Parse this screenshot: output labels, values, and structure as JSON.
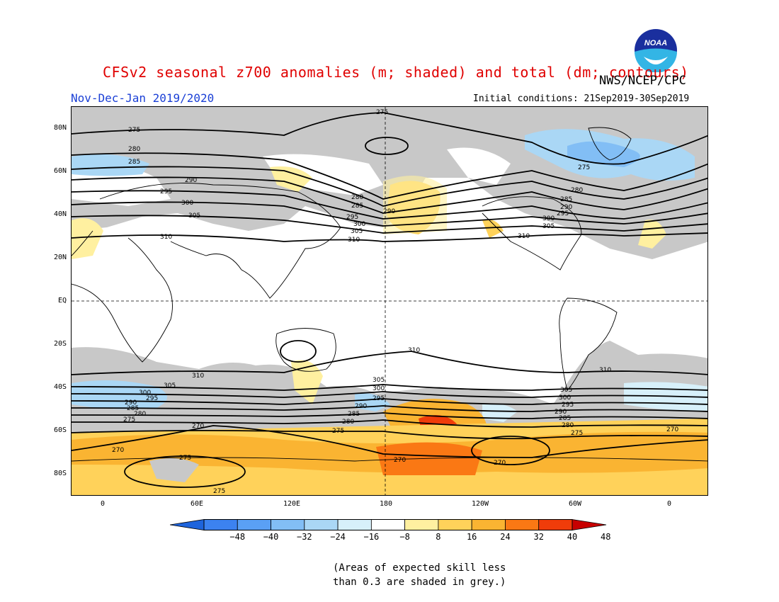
{
  "header": {
    "title": "CFSv2 seasonal z700 anomalies (m; shaded) and total (dm; contours)",
    "agency": "NWS/NCEP/CPC",
    "period": "Nov-Dec-Jan 2019/2020",
    "initial_conditions": "Initial conditions: 21Sep2019-30Sep2019",
    "logo_text": "NOAA"
  },
  "axes": {
    "lat_labels": [
      "80N",
      "60N",
      "40N",
      "20N",
      "EQ",
      "20S",
      "40S",
      "60S",
      "80S"
    ],
    "lon_labels": [
      "0",
      "60E",
      "120E",
      "180",
      "120W",
      "60W",
      "0"
    ]
  },
  "colorbar": {
    "labels": [
      "−48",
      "−40",
      "−32",
      "−24",
      "−16",
      "−8",
      "8",
      "16",
      "24",
      "32",
      "40",
      "48"
    ],
    "colors": [
      "#1e64dc",
      "#3c82f0",
      "#5aa0f5",
      "#82bef5",
      "#aad7f5",
      "#d7f0fa",
      "#ffffff",
      "#fff0a0",
      "#ffd25a",
      "#fab432",
      "#fa7814",
      "#f03c0a",
      "#c80000"
    ]
  },
  "contour_labels": [
    "275",
    "280",
    "285",
    "290",
    "295",
    "300",
    "305",
    "310",
    "270"
  ],
  "note": {
    "line1": "(Areas of expected skill less",
    "line2": "than 0.3 are shaded in grey.)"
  },
  "colors": {
    "title": "#e00000",
    "period": "#1a3fd6",
    "skill_grey": "#c8c8c8"
  }
}
